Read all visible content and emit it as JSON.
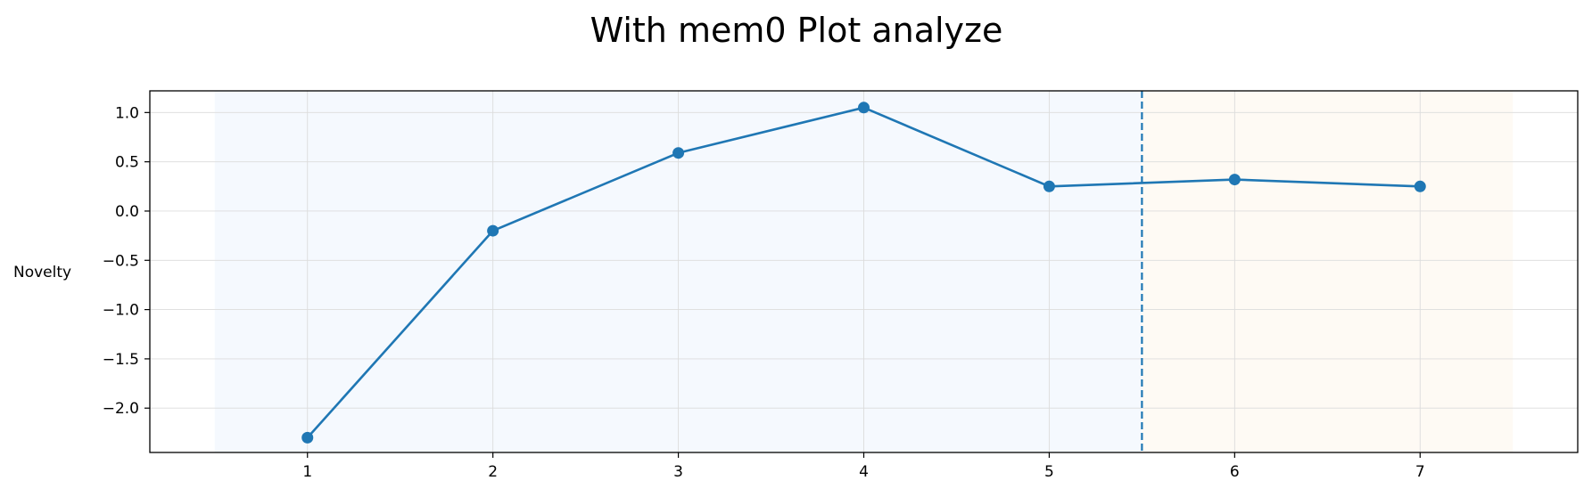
{
  "chart_data": {
    "type": "line",
    "title": "With mem0 Plot analyze",
    "xlabel": "",
    "ylabel": "Novelty",
    "x": [
      1,
      2,
      3,
      4,
      5,
      6,
      7
    ],
    "series": [
      {
        "values": [
          -2.3,
          -0.2,
          0.59,
          1.05,
          0.25,
          0.32,
          0.25
        ],
        "color": "#1f77b4",
        "marker": "circle"
      }
    ],
    "xticks": [
      "1",
      "2",
      "3",
      "4",
      "5",
      "6",
      "7"
    ],
    "yticks": [
      "−2.0",
      "−1.5",
      "−1.0",
      "−0.5",
      "0.0",
      "0.5",
      "1.0"
    ],
    "ytick_values": [
      -2.0,
      -1.5,
      -1.0,
      -0.5,
      0.0,
      0.5,
      1.0
    ],
    "xlim": [
      0.15,
      7.85
    ],
    "ylim": [
      -2.45,
      1.22
    ],
    "grid": true,
    "vline": {
      "x": 5.5,
      "style": "dashed",
      "color": "#1f77b4"
    },
    "regions": [
      {
        "x_start": 0.5,
        "x_end": 5.5,
        "color": "#f5f9fe"
      },
      {
        "x_start": 5.5,
        "x_end": 7.5,
        "color": "#fefaf4"
      }
    ]
  }
}
